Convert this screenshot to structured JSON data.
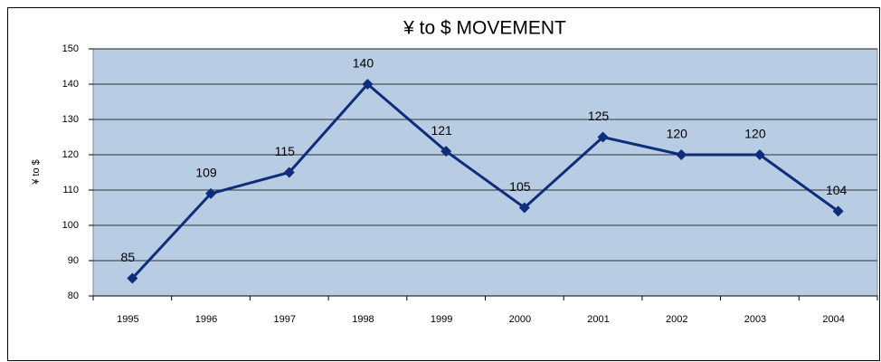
{
  "chart_data": {
    "type": "line",
    "title": "¥ to $ MOVEMENT",
    "y_label": "¥ to $",
    "categories": [
      "1995",
      "1996",
      "1997",
      "1998",
      "1999",
      "2000",
      "2001",
      "2002",
      "2003",
      "2004"
    ],
    "values": [
      85,
      109,
      115,
      140,
      121,
      105,
      125,
      120,
      120,
      104
    ],
    "color": "#0f2d7a",
    "plot_background": "#b8cce4",
    "ylim": [
      80,
      150
    ],
    "yticks": [
      80,
      90,
      100,
      110,
      120,
      130,
      140,
      150
    ],
    "grid": true
  }
}
